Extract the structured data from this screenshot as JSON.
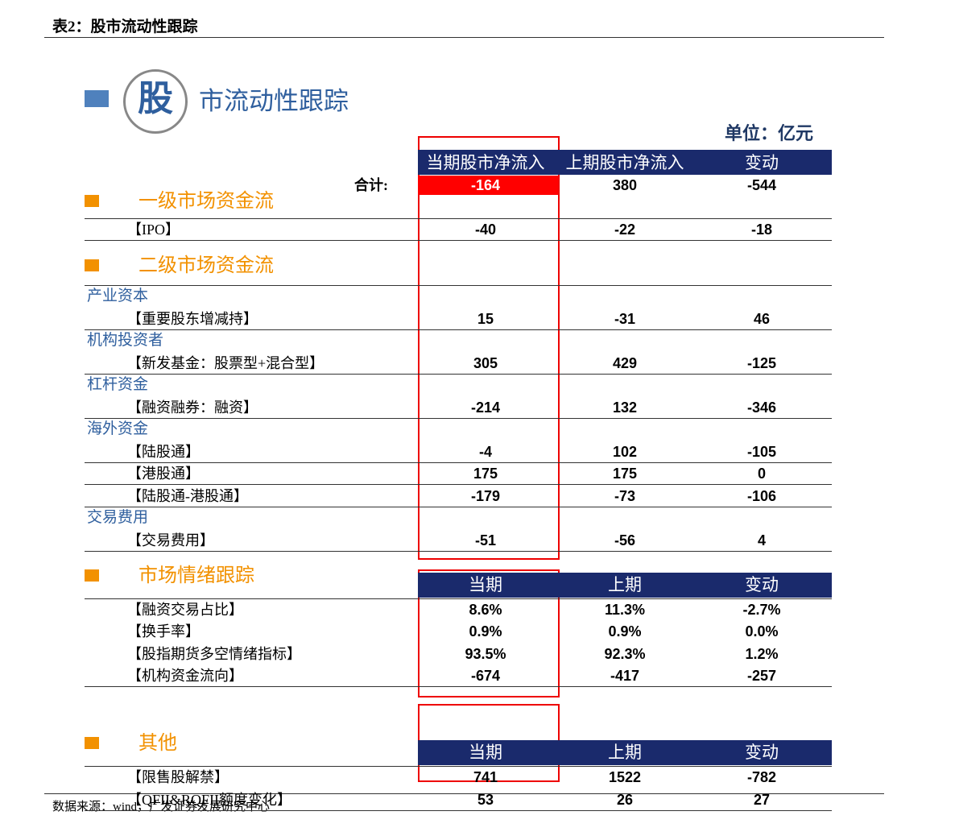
{
  "header": {
    "title": "表2：股市流动性跟踪"
  },
  "banner": {
    "initial": "股",
    "rest": "市流动性跟踪"
  },
  "unit": "单位：亿元",
  "flow_table": {
    "columns": [
      "当期股市净流入",
      "上期股市净流入",
      "变动"
    ],
    "total_label": "合计:",
    "total": [
      "-164",
      "380",
      "-544"
    ],
    "sections": [
      {
        "title": "一级市场资金流",
        "items": [
          {
            "label": "【IPO】",
            "values": [
              "-40",
              "-22",
              "-18"
            ]
          }
        ]
      },
      {
        "title": "二级市场资金流",
        "items": [
          {
            "heading": "产业资本"
          },
          {
            "label": "【重要股东增减持】",
            "values": [
              "15",
              "-31",
              "46"
            ]
          },
          {
            "heading": "机构投资者"
          },
          {
            "label": "【新发基金：股票型+混合型】",
            "values": [
              "305",
              "429",
              "-125"
            ]
          },
          {
            "heading": "杠杆资金"
          },
          {
            "label": "【融资融券：融资】",
            "values": [
              "-214",
              "132",
              "-346"
            ]
          },
          {
            "heading": "海外资金"
          },
          {
            "label": "【陆股通】",
            "values": [
              "-4",
              "102",
              "-105"
            ]
          },
          {
            "label": "【港股通】",
            "values": [
              "175",
              "175",
              "0"
            ]
          },
          {
            "label": "【陆股通-港股通】",
            "values": [
              "-179",
              "-73",
              "-106"
            ]
          },
          {
            "heading": "交易费用"
          },
          {
            "label": "【交易费用】",
            "values": [
              "-51",
              "-56",
              "4"
            ]
          }
        ]
      }
    ]
  },
  "sentiment_table": {
    "title": "市场情绪跟踪",
    "columns": [
      "当期",
      "上期",
      "变动"
    ],
    "rows": [
      {
        "label": "【融资交易占比】",
        "values": [
          "8.6%",
          "11.3%",
          "-2.7%"
        ]
      },
      {
        "label": "【换手率】",
        "values": [
          "0.9%",
          "0.9%",
          "0.0%"
        ]
      },
      {
        "label": "【股指期货多空情绪指标】",
        "values": [
          "93.5%",
          "92.3%",
          "1.2%"
        ]
      },
      {
        "label": "【机构资金流向】",
        "values": [
          "-674",
          "-417",
          "-257"
        ]
      }
    ]
  },
  "other_table": {
    "title": "其他",
    "columns": [
      "当期",
      "上期",
      "变动"
    ],
    "rows": [
      {
        "label": "【限售股解禁】",
        "values": [
          "741",
          "1522",
          "-782"
        ]
      },
      {
        "label": "【QFII&RQFII额度变化】",
        "values": [
          "53",
          "26",
          "27"
        ]
      }
    ]
  },
  "footer": {
    "source": "数据来源：wind，广发证券发展研究中心"
  }
}
